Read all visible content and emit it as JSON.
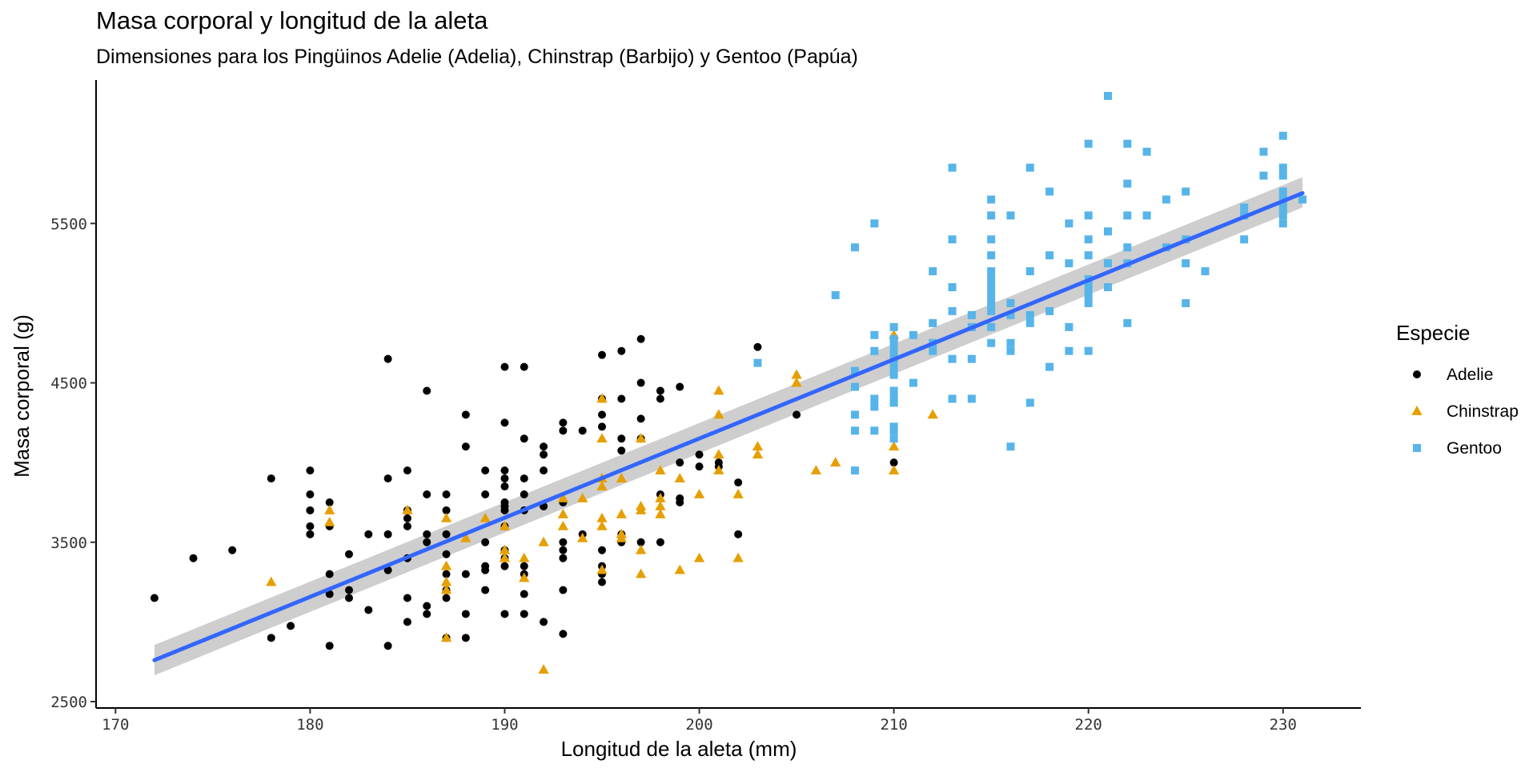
{
  "chart_data": {
    "type": "scatter",
    "title": "Masa corporal y longitud de la aleta",
    "subtitle": "Dimensiones para los Pingüinos Adelie (Adelia), Chinstrap (Barbijo) y Gentoo (Papúa)",
    "xlabel": "Longitud de la aleta (mm)",
    "ylabel": "Masa corporal (g)",
    "xlim": [
      169,
      234
    ],
    "ylim": [
      2460,
      6400
    ],
    "xticks": [
      170,
      180,
      190,
      200,
      210,
      220,
      230
    ],
    "yticks": [
      2500,
      3500,
      4500,
      5500
    ],
    "grid": false,
    "legend": {
      "title": "Especie",
      "position": "right"
    },
    "series": [
      {
        "name": "Adelie",
        "color": "#000000",
        "marker": "circle",
        "points": [
          [
            172,
            3150
          ],
          [
            174,
            3400
          ],
          [
            176,
            3450
          ],
          [
            178,
            3900
          ],
          [
            178,
            2900
          ],
          [
            179,
            2975
          ],
          [
            180,
            3950
          ],
          [
            180,
            3800
          ],
          [
            180,
            3700
          ],
          [
            180,
            3600
          ],
          [
            180,
            3550
          ],
          [
            181,
            3750
          ],
          [
            181,
            3600
          ],
          [
            181,
            3300
          ],
          [
            181,
            3175
          ],
          [
            181,
            2850
          ],
          [
            182,
            3425
          ],
          [
            182,
            3200
          ],
          [
            182,
            3150
          ],
          [
            183,
            3550
          ],
          [
            183,
            3075
          ],
          [
            184,
            4650
          ],
          [
            184,
            3900
          ],
          [
            184,
            3550
          ],
          [
            184,
            3325
          ],
          [
            184,
            2850
          ],
          [
            185,
            3950
          ],
          [
            185,
            3700
          ],
          [
            185,
            3650
          ],
          [
            185,
            3600
          ],
          [
            185,
            3400
          ],
          [
            185,
            3150
          ],
          [
            185,
            3000
          ],
          [
            186,
            4450
          ],
          [
            186,
            3800
          ],
          [
            186,
            3550
          ],
          [
            186,
            3500
          ],
          [
            186,
            3100
          ],
          [
            186,
            3050
          ],
          [
            187,
            3800
          ],
          [
            187,
            3700
          ],
          [
            187,
            3550
          ],
          [
            187,
            3425
          ],
          [
            187,
            3300
          ],
          [
            187,
            3200
          ],
          [
            187,
            3150
          ],
          [
            187,
            2900
          ],
          [
            188,
            4300
          ],
          [
            188,
            4100
          ],
          [
            188,
            3300
          ],
          [
            188,
            3050
          ],
          [
            188,
            2900
          ],
          [
            189,
            3950
          ],
          [
            189,
            3800
          ],
          [
            189,
            3500
          ],
          [
            189,
            3350
          ],
          [
            189,
            3325
          ],
          [
            189,
            3200
          ],
          [
            190,
            4600
          ],
          [
            190,
            4250
          ],
          [
            190,
            3950
          ],
          [
            190,
            3900
          ],
          [
            190,
            3850
          ],
          [
            190,
            3750
          ],
          [
            190,
            3725
          ],
          [
            190,
            3700
          ],
          [
            190,
            3600
          ],
          [
            190,
            3450
          ],
          [
            190,
            3400
          ],
          [
            190,
            3350
          ],
          [
            190,
            3050
          ],
          [
            191,
            4600
          ],
          [
            191,
            4150
          ],
          [
            191,
            3900
          ],
          [
            191,
            3800
          ],
          [
            191,
            3700
          ],
          [
            191,
            3350
          ],
          [
            191,
            3300
          ],
          [
            191,
            3175
          ],
          [
            191,
            3050
          ],
          [
            192,
            4100
          ],
          [
            192,
            4050
          ],
          [
            192,
            3950
          ],
          [
            192,
            3725
          ],
          [
            192,
            3000
          ],
          [
            193,
            4250
          ],
          [
            193,
            4200
          ],
          [
            193,
            3750
          ],
          [
            193,
            3500
          ],
          [
            193,
            3450
          ],
          [
            193,
            3400
          ],
          [
            193,
            3200
          ],
          [
            193,
            2925
          ],
          [
            194,
            4200
          ],
          [
            194,
            3550
          ],
          [
            195,
            4675
          ],
          [
            195,
            4400
          ],
          [
            195,
            4300
          ],
          [
            195,
            4225
          ],
          [
            195,
            3450
          ],
          [
            195,
            3350
          ],
          [
            195,
            3300
          ],
          [
            195,
            3250
          ],
          [
            196,
            4700
          ],
          [
            196,
            4400
          ],
          [
            196,
            4150
          ],
          [
            196,
            4075
          ],
          [
            196,
            3550
          ],
          [
            196,
            3500
          ],
          [
            197,
            4775
          ],
          [
            197,
            4500
          ],
          [
            197,
            4275
          ],
          [
            197,
            4150
          ],
          [
            197,
            3500
          ],
          [
            198,
            4450
          ],
          [
            198,
            4400
          ],
          [
            198,
            3800
          ],
          [
            198,
            3500
          ],
          [
            199,
            4475
          ],
          [
            199,
            4000
          ],
          [
            199,
            3775
          ],
          [
            199,
            3750
          ],
          [
            200,
            4050
          ],
          [
            200,
            3975
          ],
          [
            201,
            4000
          ],
          [
            201,
            3975
          ],
          [
            202,
            3875
          ],
          [
            202,
            3550
          ],
          [
            203,
            4725
          ],
          [
            205,
            4300
          ],
          [
            210,
            4000
          ]
        ]
      },
      {
        "name": "Chinstrap",
        "color": "#E69F00",
        "marker": "triangle",
        "points": [
          [
            178,
            3250
          ],
          [
            181,
            3700
          ],
          [
            181,
            3625
          ],
          [
            185,
            3700
          ],
          [
            187,
            3650
          ],
          [
            187,
            3350
          ],
          [
            187,
            3250
          ],
          [
            187,
            3200
          ],
          [
            187,
            2900
          ],
          [
            188,
            3525
          ],
          [
            189,
            3650
          ],
          [
            190,
            3400
          ],
          [
            190,
            3450
          ],
          [
            190,
            3600
          ],
          [
            191,
            3400
          ],
          [
            191,
            3275
          ],
          [
            192,
            3500
          ],
          [
            192,
            2700
          ],
          [
            193,
            3775
          ],
          [
            193,
            3675
          ],
          [
            193,
            3600
          ],
          [
            194,
            3775
          ],
          [
            194,
            3525
          ],
          [
            195,
            4400
          ],
          [
            195,
            4150
          ],
          [
            195,
            3900
          ],
          [
            195,
            3850
          ],
          [
            195,
            3650
          ],
          [
            195,
            3600
          ],
          [
            195,
            3325
          ],
          [
            196,
            3900
          ],
          [
            196,
            3675
          ],
          [
            196,
            3550
          ],
          [
            196,
            3525
          ],
          [
            197,
            4150
          ],
          [
            197,
            3725
          ],
          [
            197,
            3700
          ],
          [
            197,
            3450
          ],
          [
            197,
            3300
          ],
          [
            198,
            3950
          ],
          [
            198,
            3775
          ],
          [
            198,
            3725
          ],
          [
            198,
            3675
          ],
          [
            199,
            3900
          ],
          [
            199,
            3325
          ],
          [
            200,
            3800
          ],
          [
            200,
            3400
          ],
          [
            201,
            4450
          ],
          [
            201,
            4300
          ],
          [
            201,
            4050
          ],
          [
            201,
            3950
          ],
          [
            202,
            3800
          ],
          [
            202,
            3400
          ],
          [
            203,
            4100
          ],
          [
            203,
            4050
          ],
          [
            205,
            4550
          ],
          [
            205,
            4500
          ],
          [
            206,
            3950
          ],
          [
            207,
            4000
          ],
          [
            210,
            4800
          ],
          [
            210,
            4100
          ],
          [
            210,
            3950
          ],
          [
            212,
            4300
          ]
        ]
      },
      {
        "name": "Gentoo",
        "color": "#56B4E9",
        "marker": "square",
        "points": [
          [
            203,
            4625
          ],
          [
            207,
            5050
          ],
          [
            208,
            5350
          ],
          [
            208,
            4575
          ],
          [
            208,
            4475
          ],
          [
            208,
            4300
          ],
          [
            208,
            4200
          ],
          [
            208,
            3950
          ],
          [
            209,
            5500
          ],
          [
            209,
            4800
          ],
          [
            209,
            4700
          ],
          [
            209,
            4400
          ],
          [
            209,
            4350
          ],
          [
            209,
            4200
          ],
          [
            210,
            4850
          ],
          [
            210,
            4775
          ],
          [
            210,
            4750
          ],
          [
            210,
            4700
          ],
          [
            210,
            4650
          ],
          [
            210,
            4600
          ],
          [
            210,
            4550
          ],
          [
            210,
            4450
          ],
          [
            210,
            4400
          ],
          [
            210,
            4375
          ],
          [
            210,
            4225
          ],
          [
            210,
            4200
          ],
          [
            210,
            4150
          ],
          [
            211,
            4800
          ],
          [
            211,
            4500
          ],
          [
            212,
            5200
          ],
          [
            212,
            4875
          ],
          [
            212,
            4750
          ],
          [
            212,
            4700
          ],
          [
            213,
            5850
          ],
          [
            213,
            5400
          ],
          [
            213,
            5100
          ],
          [
            213,
            4950
          ],
          [
            213,
            4650
          ],
          [
            213,
            4400
          ],
          [
            214,
            4925
          ],
          [
            214,
            4850
          ],
          [
            214,
            4650
          ],
          [
            214,
            4400
          ],
          [
            215,
            5650
          ],
          [
            215,
            5550
          ],
          [
            215,
            5400
          ],
          [
            215,
            5300
          ],
          [
            215,
            5200
          ],
          [
            215,
            5150
          ],
          [
            215,
            5100
          ],
          [
            215,
            5050
          ],
          [
            215,
            5000
          ],
          [
            215,
            4950
          ],
          [
            215,
            4850
          ],
          [
            215,
            4750
          ],
          [
            216,
            5550
          ],
          [
            216,
            5000
          ],
          [
            216,
            4925
          ],
          [
            216,
            4750
          ],
          [
            216,
            4700
          ],
          [
            216,
            4100
          ],
          [
            217,
            5850
          ],
          [
            217,
            5200
          ],
          [
            217,
            4925
          ],
          [
            217,
            4875
          ],
          [
            217,
            4375
          ],
          [
            218,
            5700
          ],
          [
            218,
            5300
          ],
          [
            218,
            4950
          ],
          [
            218,
            4600
          ],
          [
            219,
            5500
          ],
          [
            219,
            5250
          ],
          [
            219,
            4850
          ],
          [
            219,
            4700
          ],
          [
            220,
            6000
          ],
          [
            220,
            5550
          ],
          [
            220,
            5400
          ],
          [
            220,
            5300
          ],
          [
            220,
            5150
          ],
          [
            220,
            5100
          ],
          [
            220,
            5050
          ],
          [
            220,
            5000
          ],
          [
            220,
            4700
          ],
          [
            221,
            6300
          ],
          [
            221,
            5450
          ],
          [
            221,
            5250
          ],
          [
            221,
            5100
          ],
          [
            222,
            6000
          ],
          [
            222,
            5750
          ],
          [
            222,
            5550
          ],
          [
            222,
            5350
          ],
          [
            222,
            5250
          ],
          [
            222,
            4875
          ],
          [
            223,
            5950
          ],
          [
            223,
            5550
          ],
          [
            224,
            5650
          ],
          [
            224,
            5350
          ],
          [
            225,
            5700
          ],
          [
            225,
            5400
          ],
          [
            225,
            5250
          ],
          [
            225,
            5000
          ],
          [
            226,
            5200
          ],
          [
            228,
            5600
          ],
          [
            228,
            5550
          ],
          [
            228,
            5400
          ],
          [
            229,
            5950
          ],
          [
            229,
            5800
          ],
          [
            230,
            6050
          ],
          [
            230,
            5850
          ],
          [
            230,
            5800
          ],
          [
            230,
            5700
          ],
          [
            230,
            5650
          ],
          [
            230,
            5600
          ],
          [
            230,
            5550
          ],
          [
            230,
            5500
          ],
          [
            231,
            5650
          ]
        ]
      }
    ],
    "trendline": {
      "type": "linear",
      "color": "#3366FF",
      "band_color": "#BEBEBE",
      "start": {
        "x": 172,
        "y": 2760,
        "lower": 2665,
        "upper": 2855
      },
      "end": {
        "x": 231,
        "y": 5690,
        "lower": 5600,
        "upper": 5790
      }
    }
  }
}
